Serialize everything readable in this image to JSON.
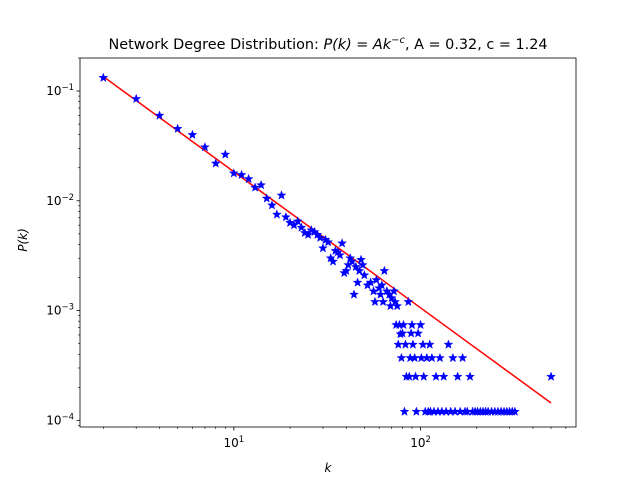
{
  "chart_data": {
    "type": "scatter",
    "title_prefix": "Network Degree Distribution: ",
    "title_formula": "P(k) = Ak",
    "title_exponent": "−c",
    "title_suffix": ", A = 0.32, c = 1.24",
    "xlabel": "k",
    "ylabel": "P(k)",
    "x_scale": "log",
    "y_scale": "log",
    "xlim": [
      1.5,
      680
    ],
    "ylim": [
      8.7e-05,
      0.2
    ],
    "grid": false,
    "x_ticks": [
      {
        "value": 10,
        "base": "10",
        "exp": "1"
      },
      {
        "value": 100,
        "base": "10",
        "exp": "2"
      }
    ],
    "y_ticks": [
      {
        "value": 0.0001,
        "base": "10",
        "exp": "−4"
      },
      {
        "value": 0.001,
        "base": "10",
        "exp": "−3"
      },
      {
        "value": 0.01,
        "base": "10",
        "exp": "−2"
      },
      {
        "value": 0.1,
        "base": "10",
        "exp": "−1"
      }
    ],
    "fit": {
      "A": 0.32,
      "c": 1.24,
      "x_range": [
        2,
        500
      ],
      "color": "#ff0000"
    },
    "marker_color": "#0000ff",
    "points": [
      [
        2,
        0.132
      ],
      [
        3,
        0.0848
      ],
      [
        4,
        0.0598
      ],
      [
        5,
        0.0453
      ],
      [
        6,
        0.0399
      ],
      [
        7,
        0.0308
      ],
      [
        8,
        0.0219
      ],
      [
        9,
        0.0264
      ],
      [
        10,
        0.0178
      ],
      [
        11,
        0.0172
      ],
      [
        12,
        0.0158
      ],
      [
        13,
        0.0132
      ],
      [
        14,
        0.0139
      ],
      [
        15,
        0.0105
      ],
      [
        16,
        0.0091
      ],
      [
        17,
        0.0075
      ],
      [
        18,
        0.0112
      ],
      [
        19,
        0.0071
      ],
      [
        20,
        0.0063
      ],
      [
        21,
        0.006
      ],
      [
        22,
        0.0065
      ],
      [
        23,
        0.0057
      ],
      [
        24,
        0.0051
      ],
      [
        25,
        0.0049
      ],
      [
        26,
        0.0054
      ],
      [
        27,
        0.0052
      ],
      [
        28,
        0.0049
      ],
      [
        29,
        0.0046
      ],
      [
        30,
        0.0037
      ],
      [
        31,
        0.0044
      ],
      [
        32,
        0.0042
      ],
      [
        33,
        0.003
      ],
      [
        34,
        0.0028
      ],
      [
        35,
        0.0035
      ],
      [
        36,
        0.0034
      ],
      [
        37,
        0.0032
      ],
      [
        38,
        0.0041
      ],
      [
        39,
        0.0022
      ],
      [
        40,
        0.0023
      ],
      [
        41,
        0.0026
      ],
      [
        42,
        0.003
      ],
      [
        43,
        0.0028
      ],
      [
        44,
        0.0014
      ],
      [
        45,
        0.0025
      ],
      [
        46,
        0.0018
      ],
      [
        47,
        0.0023
      ],
      [
        48,
        0.0029
      ],
      [
        49,
        0.0026
      ],
      [
        50,
        0.0021
      ],
      [
        52,
        0.0017
      ],
      [
        54,
        0.0018
      ],
      [
        56,
        0.0015
      ],
      [
        57,
        0.0012
      ],
      [
        58,
        0.0019
      ],
      [
        60,
        0.0016
      ],
      [
        61,
        0.0014
      ],
      [
        62,
        0.0017
      ],
      [
        63,
        0.0012
      ],
      [
        64,
        0.0023
      ],
      [
        66,
        0.0015
      ],
      [
        68,
        0.0014
      ],
      [
        69,
        0.0011
      ],
      [
        70,
        0.0013
      ],
      [
        72,
        0.0015
      ],
      [
        73,
        0.0012
      ],
      [
        74,
        0.00074
      ],
      [
        75,
        0.0011
      ],
      [
        76,
        0.00049
      ],
      [
        77,
        0.00074
      ],
      [
        78,
        0.00061
      ],
      [
        79,
        0.00037
      ],
      [
        80,
        0.00062
      ],
      [
        81,
        0.00074
      ],
      [
        82,
        0.00012
      ],
      [
        83,
        0.00049
      ],
      [
        84,
        0.00025
      ],
      [
        86,
        0.0012
      ],
      [
        87,
        0.00025
      ],
      [
        88,
        0.00037
      ],
      [
        89,
        0.00062
      ],
      [
        90,
        0.00074
      ],
      [
        91,
        0.00049
      ],
      [
        93,
        0.00037
      ],
      [
        94,
        0.00025
      ],
      [
        95,
        0.00012
      ],
      [
        97,
        0.00062
      ],
      [
        100,
        0.00074
      ],
      [
        101,
        0.00037
      ],
      [
        103,
        0.00049
      ],
      [
        104,
        0.00025
      ],
      [
        106,
        0.00012
      ],
      [
        108,
        0.00037
      ],
      [
        110,
        0.00012
      ],
      [
        112,
        0.00049
      ],
      [
        113,
        0.00012
      ],
      [
        115,
        0.00037
      ],
      [
        118,
        0.00012
      ],
      [
        121,
        0.00025
      ],
      [
        124,
        0.00012
      ],
      [
        127,
        0.00037
      ],
      [
        130,
        0.00012
      ],
      [
        133,
        0.00025
      ],
      [
        137,
        0.00012
      ],
      [
        141,
        0.00049
      ],
      [
        145,
        0.00012
      ],
      [
        149,
        0.00037
      ],
      [
        153,
        0.00012
      ],
      [
        158,
        0.00025
      ],
      [
        163,
        0.00012
      ],
      [
        168,
        0.00037
      ],
      [
        173,
        0.00012
      ],
      [
        178,
        0.00012
      ],
      [
        184,
        0.00025
      ],
      [
        190,
        0.00012
      ],
      [
        196,
        0.00012
      ],
      [
        202,
        0.00012
      ],
      [
        209,
        0.00012
      ],
      [
        216,
        0.00012
      ],
      [
        223,
        0.00012
      ],
      [
        230,
        0.00012
      ],
      [
        240,
        0.00012
      ],
      [
        250,
        0.00012
      ],
      [
        260,
        0.00012
      ],
      [
        270,
        0.00012
      ],
      [
        280,
        0.00012
      ],
      [
        290,
        0.00012
      ],
      [
        300,
        0.00012
      ],
      [
        310,
        0.00012
      ],
      [
        320,
        0.00012
      ],
      [
        500,
        0.00025
      ]
    ]
  }
}
